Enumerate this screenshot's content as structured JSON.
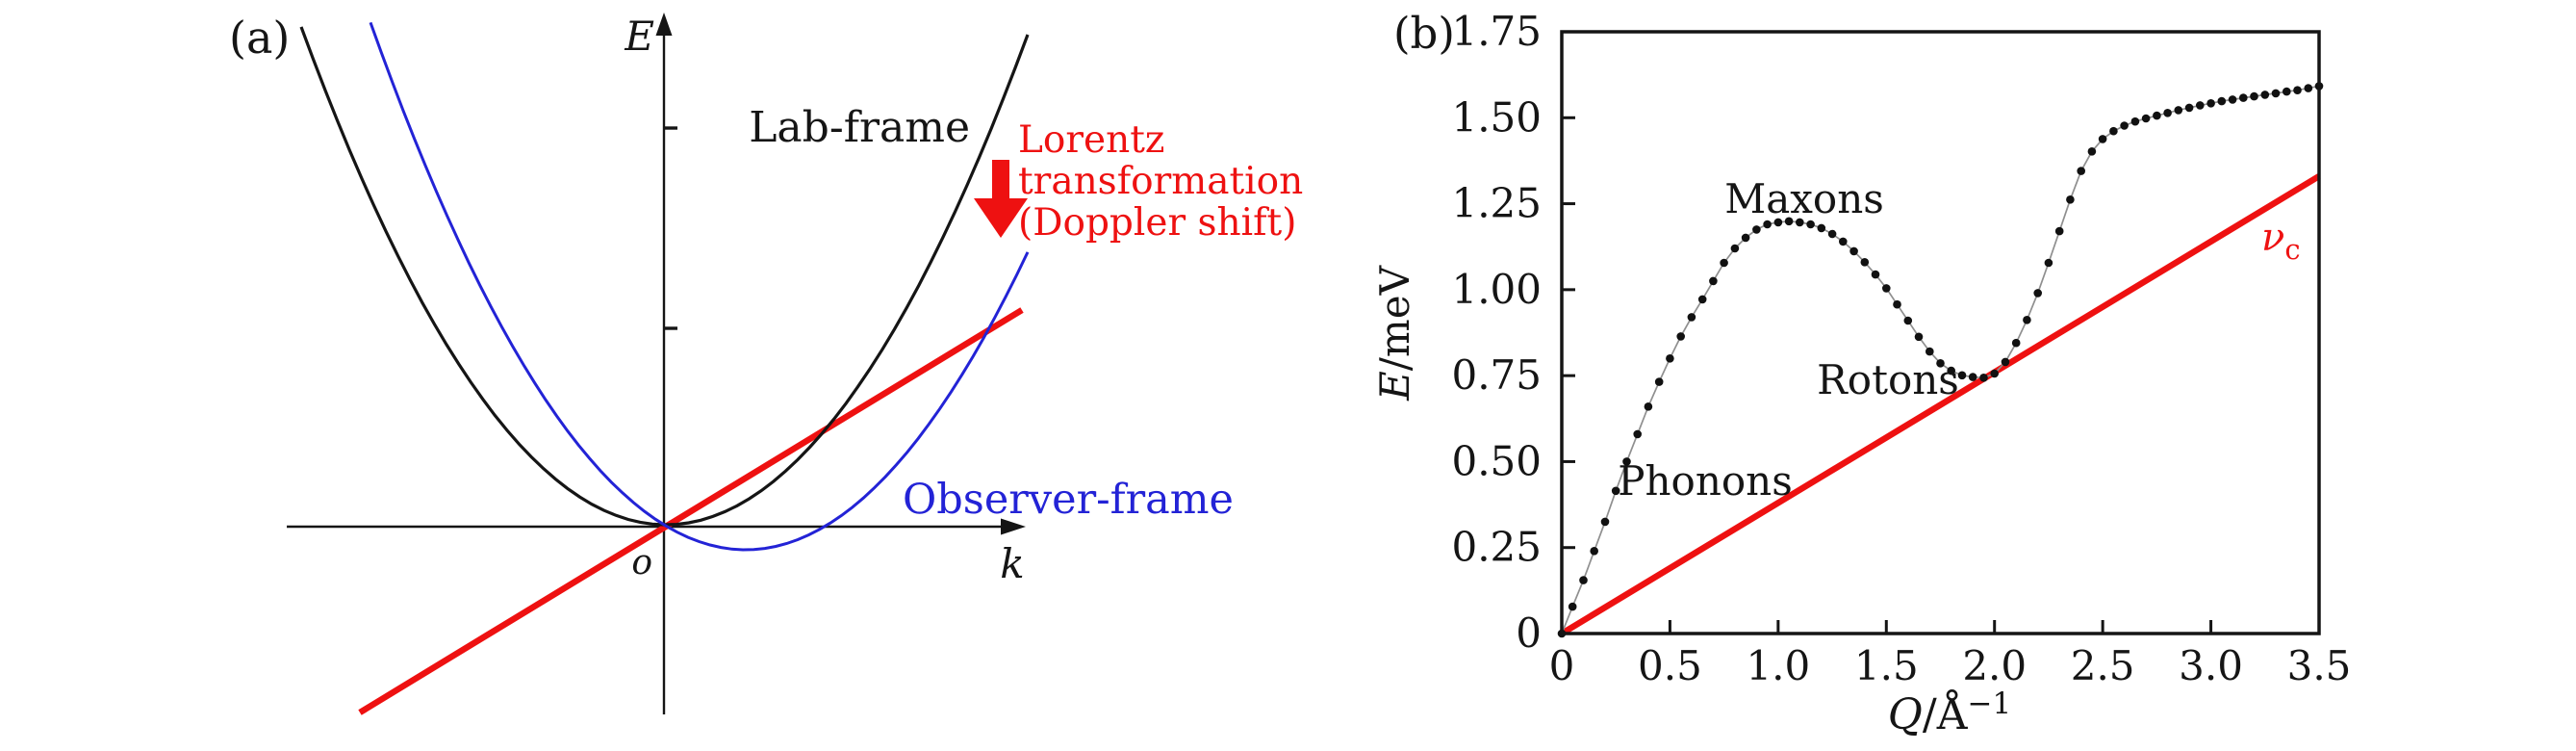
{
  "figure": {
    "background": "#ffffff",
    "colors": {
      "red": "#ee1111",
      "blue": "#2323d6",
      "black": "#151515",
      "gray": "#8f8f8f",
      "dot": "#111111"
    },
    "panel_a": {
      "tag": "(a)",
      "e_axis_label": "E",
      "k_axis_label": "k",
      "origin_label": "o",
      "lab_frame_label": "Lab-frame",
      "observer_frame_label": "Observer-frame",
      "lorentz_lines": [
        "Lorentz",
        "transformation",
        "(Doppler shift)"
      ]
    },
    "panel_b": {
      "tag": "(b)",
      "ylabel_italic": "E",
      "ylabel_rest": "/meV",
      "xlabel_italic": "Q",
      "xlabel_rest": "/Å",
      "xlabel_sup": "−1",
      "yticks": [
        "0",
        "0.25",
        "0.50",
        "0.75",
        "1.00",
        "1.25",
        "1.50",
        "1.75"
      ],
      "xticks": [
        "0",
        "0.5",
        "1.0",
        "1.5",
        "2.0",
        "2.5",
        "3.0",
        "3.5"
      ],
      "maxons_label": "Maxons",
      "rotons_label": "Rotons",
      "phonons_label": "Phonons",
      "vc_main": "ν",
      "vc_sub": "c"
    }
  },
  "chart_data": [
    {
      "type": "diagram",
      "panel": "a",
      "title": "",
      "description": "Schematic free-particle dispersion E(k): black parabola (Lab-frame) with vertex at origin o; blue parabola (Observer-frame) shifted right and below origin after Lorentz transformation (Doppler shift), indicated by a thick red downward arrow; straight red line E = v k through the origin.",
      "elements": [
        {
          "name": "lab-frame-parabola",
          "color": "#151515",
          "form": "parabola, vertex at origin"
        },
        {
          "name": "observer-frame-parabola",
          "color": "#2323d6",
          "form": "parabola, vertex shifted right of and below origin"
        },
        {
          "name": "velocity-line",
          "color": "#ee1111",
          "form": "straight line through origin, positive slope"
        },
        {
          "name": "lorentz-arrow",
          "color": "#ee1111",
          "form": "thick downward arrow between the two frames"
        }
      ],
      "axes": {
        "x": "k",
        "y": "E",
        "origin": "o",
        "y_axis_ticks": 2
      }
    },
    {
      "type": "scatter",
      "panel": "b",
      "title": "",
      "xlabel": "Q/Å⁻¹",
      "ylabel": "E/meV",
      "xlim": [
        0,
        3.5
      ],
      "ylim": [
        0,
        1.75
      ],
      "grid": false,
      "x_start": 0,
      "x_step": 0.05,
      "series": [
        {
          "name": "dispersion curve (phonon-maxon-roton)",
          "style": "black dots with thin gray connecting line",
          "E": [
            0.0,
            0.078,
            0.155,
            0.24,
            0.325,
            0.415,
            0.5,
            0.58,
            0.66,
            0.732,
            0.8,
            0.864,
            0.92,
            0.972,
            1.025,
            1.078,
            1.12,
            1.151,
            1.175,
            1.19,
            1.196,
            1.199,
            1.196,
            1.19,
            1.179,
            1.162,
            1.14,
            1.112,
            1.08,
            1.044,
            1.004,
            0.957,
            0.91,
            0.863,
            0.82,
            0.786,
            0.764,
            0.751,
            0.746,
            0.744,
            0.756,
            0.79,
            0.845,
            0.912,
            0.99,
            1.078,
            1.17,
            1.262,
            1.345,
            1.402,
            1.438,
            1.461,
            1.477,
            1.489,
            1.498,
            1.506,
            1.514,
            1.522,
            1.529,
            1.536,
            1.542,
            1.548,
            1.553,
            1.558,
            1.562,
            1.567,
            1.571,
            1.576,
            1.58,
            1.586,
            1.592
          ]
        },
        {
          "name": "ν_c (critical velocity line)",
          "style": "red straight line",
          "points": [
            [
              0,
              0
            ],
            [
              3.5,
              1.33
            ]
          ]
        }
      ],
      "annotations": [
        {
          "text": "Phonons",
          "Q": 0.66,
          "E": 0.44
        },
        {
          "text": "Maxons",
          "Q": 1.12,
          "E": 1.25
        },
        {
          "text": "Rotons",
          "Q": 1.51,
          "E": 0.72
        },
        {
          "text": "ν_c",
          "Q": 3.28,
          "E": 1.15
        }
      ]
    }
  ]
}
